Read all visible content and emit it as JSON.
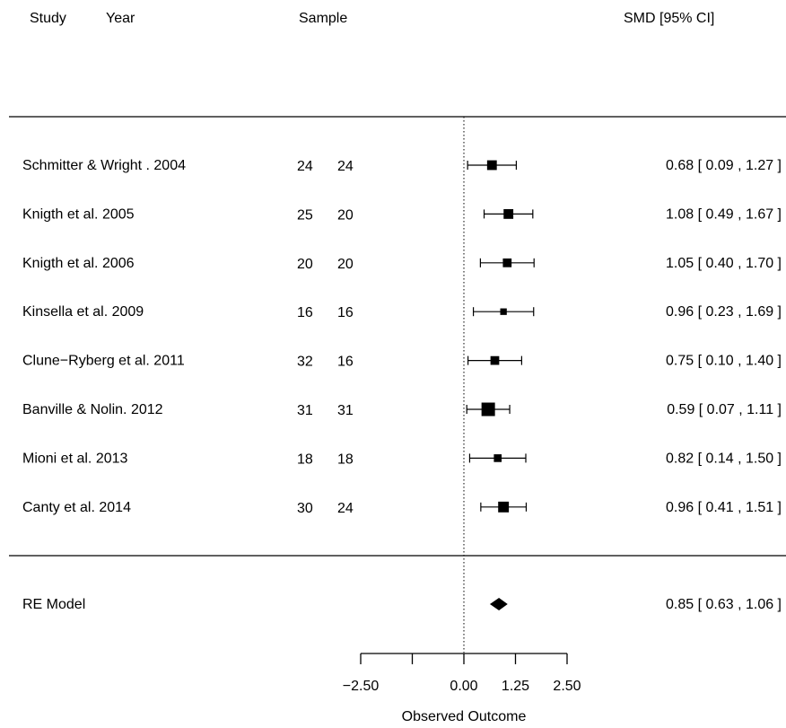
{
  "headers": {
    "study": "Study",
    "year": "Year",
    "sample": "Sample",
    "smd": "SMD [95% CI]"
  },
  "chart_data": {
    "type": "forest",
    "xlabel": "Observed Outcome",
    "xlim": [
      -2.5,
      2.5
    ],
    "ticks": [
      -2.5,
      -1.25,
      0,
      1.25,
      2.5
    ],
    "tick_labels": [
      "−2.50",
      "",
      "0.00",
      "1.25",
      "2.50"
    ],
    "reference_line": 0,
    "studies": [
      {
        "label": "Schmitter & Wright . 2004",
        "n1": "24",
        "n2": "24",
        "est": 0.68,
        "lo": 0.09,
        "hi": 1.27,
        "ci_text": "0.68 [ 0.09 , 1.27 ]",
        "weight": 0.62
      },
      {
        "label": "Knigth et al. 2005",
        "n1": "25",
        "n2": "20",
        "est": 1.08,
        "lo": 0.49,
        "hi": 1.67,
        "ci_text": "1.08 [ 0.49 , 1.67 ]",
        "weight": 0.62
      },
      {
        "label": "Knigth et al. 2006",
        "n1": "20",
        "n2": "20",
        "est": 1.05,
        "lo": 0.4,
        "hi": 1.7,
        "ci_text": "1.05 [ 0.40 , 1.70 ]",
        "weight": 0.52
      },
      {
        "label": "Kinsella et al. 2009",
        "n1": "16",
        "n2": "16",
        "est": 0.96,
        "lo": 0.23,
        "hi": 1.69,
        "ci_text": "0.96 [ 0.23 , 1.69 ]",
        "weight": 0.3
      },
      {
        "label": "Clune−Ryberg et al. 2011",
        "n1": "32",
        "n2": "16",
        "est": 0.75,
        "lo": 0.1,
        "hi": 1.4,
        "ci_text": "0.75 [ 0.10 , 1.40 ]",
        "weight": 0.52
      },
      {
        "label": "Banville & Nolin. 2012",
        "n1": "31",
        "n2": "31",
        "est": 0.59,
        "lo": 0.07,
        "hi": 1.11,
        "ci_text": "0.59 [ 0.07 , 1.11 ]",
        "weight": 1.0
      },
      {
        "label": "Mioni et al. 2013",
        "n1": "18",
        "n2": "18",
        "est": 0.82,
        "lo": 0.14,
        "hi": 1.5,
        "ci_text": "0.82 [ 0.14 , 1.50 ]",
        "weight": 0.42
      },
      {
        "label": "Canty et al. 2014",
        "n1": "30",
        "n2": "24",
        "est": 0.96,
        "lo": 0.41,
        "hi": 1.51,
        "ci_text": "0.96 [ 0.41 , 1.51 ]",
        "weight": 0.72
      }
    ],
    "summary": {
      "label": "RE Model",
      "est": 0.85,
      "lo": 0.63,
      "hi": 1.06,
      "ci_text": "0.85 [ 0.63 , 1.06 ]"
    }
  }
}
